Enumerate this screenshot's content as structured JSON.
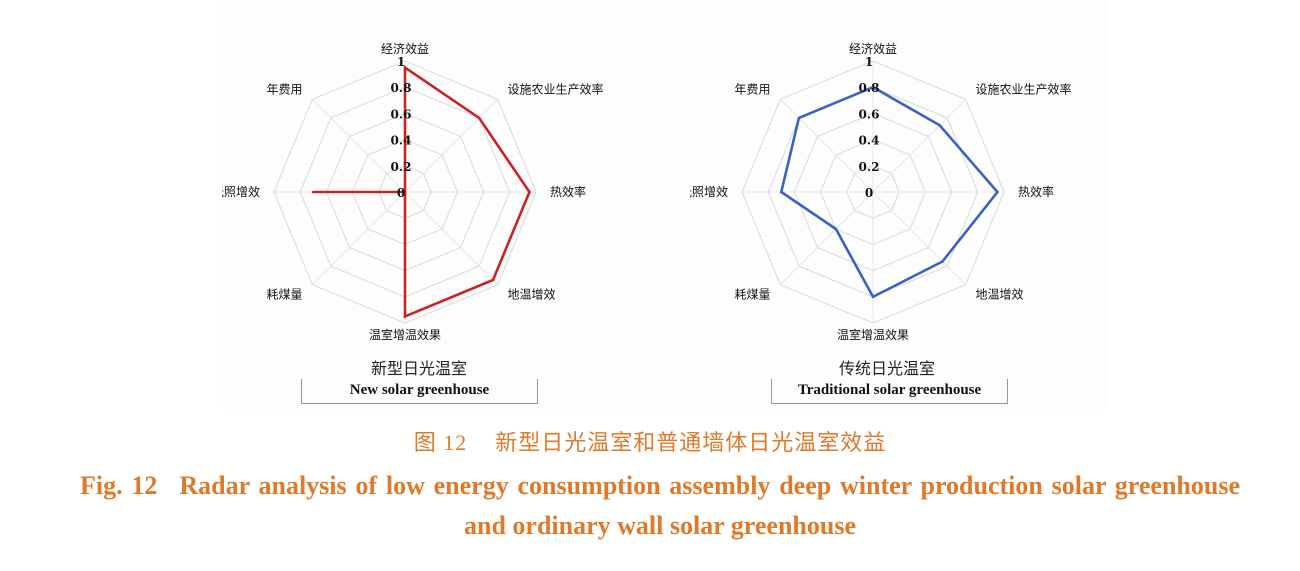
{
  "chart_data": [
    {
      "type": "radar",
      "caption_cn": "新型日光温室",
      "caption_en": "New solar greenhouse",
      "axes": [
        "经济效益",
        "设施农业生产效率",
        "热效率",
        "地温增效",
        "温室增温效果",
        "耗煤量",
        "光照增效",
        "年费用"
      ],
      "rlim": [
        0,
        1
      ],
      "rticks": [
        "0",
        "0.2",
        "0.4",
        "0.6",
        "0.8",
        "1"
      ],
      "grid": true,
      "color": "#cc2222",
      "values": [
        0.95,
        0.8,
        0.95,
        0.95,
        0.95,
        0,
        0.7,
        0
      ]
    },
    {
      "type": "radar",
      "caption_cn": "传统日光温室",
      "caption_en": "Traditional solar greenhouse",
      "axes": [
        "经济效益",
        "设施农业生产效率",
        "热效率",
        "地温增效",
        "温室增温效果",
        "耗煤量",
        "光照增效",
        "年费用"
      ],
      "rlim": [
        0,
        1
      ],
      "rticks": [
        "0",
        "0.2",
        "0.4",
        "0.6",
        "0.8",
        "1"
      ],
      "grid": true,
      "color": "#3a62c4",
      "values": [
        0.8,
        0.72,
        0.95,
        0.75,
        0.8,
        0.4,
        0.7,
        0.8
      ]
    }
  ],
  "figure": {
    "title_cn_label": "图 12",
    "title_cn": "新型日光温室和普通墙体日光温室效益",
    "title_en_label": "Fig. 12",
    "title_en": "Radar analysis of low energy consumption assembly deep winter production solar greenhouse and ordinary wall solar greenhouse"
  }
}
